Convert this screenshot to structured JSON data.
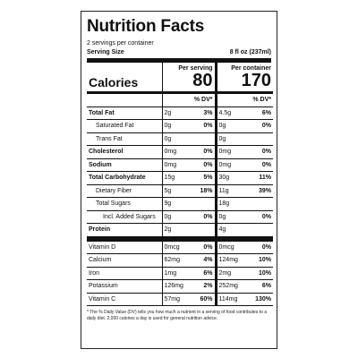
{
  "title": "Nutrition Facts",
  "servings": "2 servings per container",
  "serving_size": {
    "label": "Serving Size",
    "value": "8 fl oz (237ml)"
  },
  "columns": {
    "per_serving": "Per serving",
    "per_container": "Per container"
  },
  "calories": {
    "label": "Calories",
    "per_serving": 80,
    "per_container": 170
  },
  "dv_header": "% DV*",
  "nutrients": [
    {
      "name": "Total Fat",
      "per_serving": "2g",
      "serving_dv": "3%",
      "per_container": "4.5g",
      "container_dv": "6%",
      "sub": [
        {
          "name": "Saturated Fat",
          "per_serving": "0g",
          "serving_dv": "0%",
          "per_container": "0g",
          "container_dv": "0%"
        },
        {
          "name": "Trans Fat",
          "per_serving": "0g",
          "serving_dv": null,
          "per_container": "0g",
          "container_dv": null
        }
      ]
    },
    {
      "name": "Cholesterol",
      "per_serving": "0mg",
      "serving_dv": "0%",
      "per_container": "0mg",
      "container_dv": "0%"
    },
    {
      "name": "Sodium",
      "per_serving": "0mg",
      "serving_dv": "0%",
      "per_container": "0mg",
      "container_dv": "0%"
    },
    {
      "name": "Total Carbohydrate",
      "per_serving": "15g",
      "serving_dv": "5%",
      "per_container": "30g",
      "container_dv": "11%",
      "sub": [
        {
          "name": "Dietary Fiber",
          "per_serving": "5g",
          "serving_dv": "18%",
          "per_container": "11g",
          "container_dv": "39%"
        },
        {
          "name": "Total Sugars",
          "per_serving": "9g",
          "serving_dv": null,
          "per_container": "18g",
          "container_dv": null,
          "sub": [
            {
              "name": "Incl. Added Sugars",
              "per_serving": "0g",
              "serving_dv": "0%",
              "per_container": "0g",
              "container_dv": "0%"
            }
          ]
        }
      ]
    },
    {
      "name": "Protein",
      "per_serving": "2g",
      "serving_dv": null,
      "per_container": "4g",
      "container_dv": null
    }
  ],
  "vitamins": [
    {
      "name": "Vitamin D",
      "per_serving": "0mcg",
      "serving_dv": "0%",
      "per_container": "0mcg",
      "container_dv": "0%"
    },
    {
      "name": "Calcium",
      "per_serving": "62mg",
      "serving_dv": "4%",
      "per_container": "124mg",
      "container_dv": "10%"
    },
    {
      "name": "Iron",
      "per_serving": "1mg",
      "serving_dv": "6%",
      "per_container": "2mg",
      "container_dv": "10%"
    },
    {
      "name": "Potassium",
      "per_serving": "126mg",
      "serving_dv": "2%",
      "per_container": "252mg",
      "container_dv": "6%"
    },
    {
      "name": "Vitamin C",
      "per_serving": "57mg",
      "serving_dv": "60%",
      "per_container": "114mg",
      "container_dv": "130%"
    }
  ],
  "footnote": "* The % Daily Value (DV) tells you how much a nutrient in a serving of food contributes to a daily diet. 2,000 calories a day is used for general nutrition advice."
}
